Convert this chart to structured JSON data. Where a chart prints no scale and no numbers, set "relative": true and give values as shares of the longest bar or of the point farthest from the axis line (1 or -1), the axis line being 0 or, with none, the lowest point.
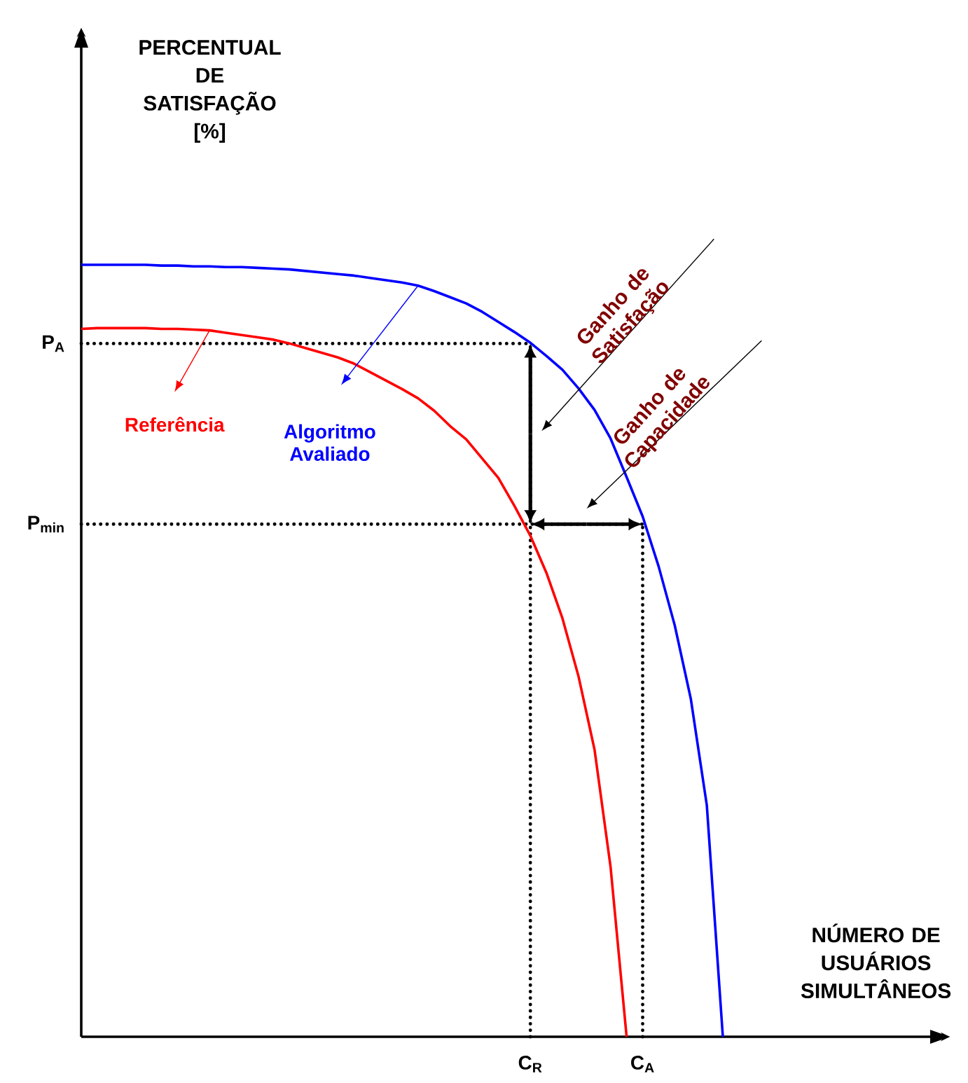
{
  "chart_data": {
    "type": "line",
    "relative": true,
    "xlabel": "NÚMERO DE USUÁRIOS SIMULTÂNEOS",
    "categories": [
      null,
      null,
      null,
      null,
      null,
      null,
      null,
      null,
      null,
      null,
      null,
      null,
      null,
      null,
      null,
      null,
      null,
      null,
      null,
      null,
      null,
      null,
      null,
      null,
      null,
      null,
      null,
      null,
      "C$_{R}$",
      null,
      null,
      null,
      null,
      null,
      null,
      "C$_{A}$",
      null,
      null,
      null,
      null,
      null
    ],
    "series": [
      {
        "name": "Referência",
        "color": "#ff0000",
        "values": [
          0.917,
          0.918,
          0.918,
          0.918,
          0.918,
          0.917,
          0.917,
          0.916,
          0.915,
          0.912,
          0.909,
          0.906,
          0.903,
          0.898,
          0.892,
          0.886,
          0.88,
          0.872,
          0.861,
          0.85,
          0.839,
          0.827,
          0.811,
          0.791,
          0.774,
          0.749,
          0.724,
          0.688,
          0.649,
          0.601,
          0.542,
          0.467,
          0.372,
          0.22,
          0,
          null,
          null,
          null,
          null,
          null,
          null
        ]
      },
      {
        "name": "Algoritmo Avaliado",
        "color": "#0000ff",
        "values": [
          1.0,
          1.0,
          1.0,
          1.0,
          1.0,
          0.999,
          0.999,
          0.998,
          0.998,
          0.997,
          0.997,
          0.996,
          0.995,
          0.994,
          0.992,
          0.99,
          0.988,
          0.986,
          0.983,
          0.98,
          0.977,
          0.973,
          0.966,
          0.958,
          0.95,
          0.939,
          0.926,
          0.913,
          0.899,
          0.882,
          0.864,
          0.84,
          0.812,
          0.775,
          0.725,
          0.674,
          0.609,
          0.533,
          0.438,
          0.3,
          0
        ]
      }
    ],
    "ref_lines": [
      {
        "axis": "y",
        "value": 0.898,
        "label": "P$_{A}$",
        "line_style": "dotted",
        "color": "#000000"
      },
      {
        "axis": "y",
        "value": 0.664,
        "label": "P$_{min}$",
        "line_style": "dotted",
        "color": "#000000"
      }
    ],
    "annotations": [
      "Ganho de Satisfação",
      "Ganho de Capacidade",
      "PERCENTUAL DE SATISFAÇÃO [%]"
    ]
  }
}
